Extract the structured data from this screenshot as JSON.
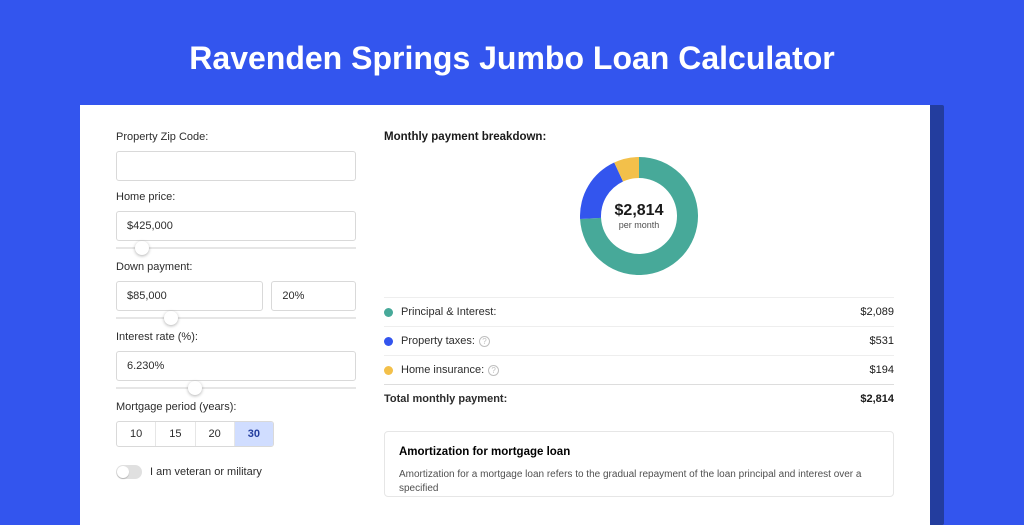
{
  "page": {
    "title": "Ravenden Springs Jumbo Loan Calculator",
    "bg_color": "#3355ee",
    "card_frame_color": "#233d9e"
  },
  "form": {
    "zip": {
      "label": "Property Zip Code:",
      "value": ""
    },
    "home_price": {
      "label": "Home price:",
      "value": "$425,000",
      "slider_pct": 8
    },
    "down_payment": {
      "label": "Down payment:",
      "value": "$85,000",
      "pct_value": "20%",
      "slider_pct": 20
    },
    "interest": {
      "label": "Interest rate (%):",
      "value": "6.230%",
      "slider_pct": 30
    },
    "period": {
      "label": "Mortgage period (years):",
      "options": [
        "10",
        "15",
        "20",
        "30"
      ],
      "selected": "30"
    },
    "veteran": {
      "label": "I am veteran or military",
      "value": false
    }
  },
  "breakdown": {
    "title": "Monthly payment breakdown:",
    "donut": {
      "value": "$2,814",
      "sub": "per month",
      "segments": [
        {
          "label": "pi",
          "pct": 74.2,
          "color": "#47a999"
        },
        {
          "label": "tax",
          "pct": 18.9,
          "color": "#3355ee"
        },
        {
          "label": "ins",
          "pct": 6.9,
          "color": "#f3c04a"
        }
      ]
    },
    "rows": [
      {
        "label": "Principal & Interest:",
        "value": "$2,089",
        "dot": "#47a999",
        "info": false
      },
      {
        "label": "Property taxes:",
        "value": "$531",
        "dot": "#3355ee",
        "info": true
      },
      {
        "label": "Home insurance:",
        "value": "$194",
        "dot": "#f3c04a",
        "info": true
      }
    ],
    "total": {
      "label": "Total monthly payment:",
      "value": "$2,814"
    }
  },
  "amort": {
    "title": "Amortization for mortgage loan",
    "text": "Amortization for a mortgage loan refers to the gradual repayment of the loan principal and interest over a specified"
  }
}
